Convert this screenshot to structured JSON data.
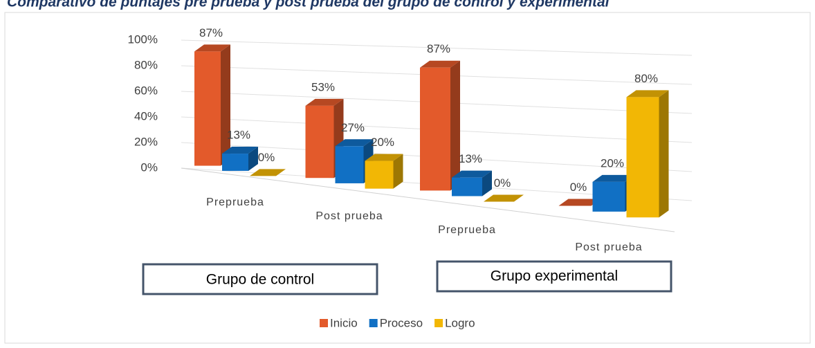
{
  "chart_data": {
    "type": "bar3d",
    "title": "Comparativo de puntajes pre prueba y post prueba del grupo de control y experimental",
    "categories": [
      "Preprueba",
      "Post prueba",
      "Preprueba",
      "Post prueba"
    ],
    "series": [
      {
        "name": "Inicio",
        "color": "#e35a2b",
        "values": [
          87,
          53,
          87,
          0
        ],
        "value_labels": [
          "87%",
          "53%",
          "87%",
          "0%"
        ]
      },
      {
        "name": "Proceso",
        "color": "#1170c4",
        "values": [
          13,
          27,
          13,
          20
        ],
        "value_labels": [
          "13%",
          "27%",
          "13%",
          "20%"
        ]
      },
      {
        "name": "Logro",
        "color": "#f2b705",
        "values": [
          0,
          20,
          0,
          80
        ],
        "value_labels": [
          "0%",
          "20%",
          "0%",
          "80%"
        ]
      }
    ],
    "ylim": [
      0,
      100
    ],
    "yticks": [
      {
        "value": 0,
        "label": "0%"
      },
      {
        "value": 20,
        "label": "20%"
      },
      {
        "value": 40,
        "label": "40%"
      },
      {
        "value": 60,
        "label": "60%"
      },
      {
        "value": 80,
        "label": "80%"
      },
      {
        "value": 100,
        "label": "100%"
      }
    ],
    "grid": true,
    "legend": "bottom",
    "annotations": [
      "Grupo de  control",
      "Grupo  experimental"
    ]
  }
}
